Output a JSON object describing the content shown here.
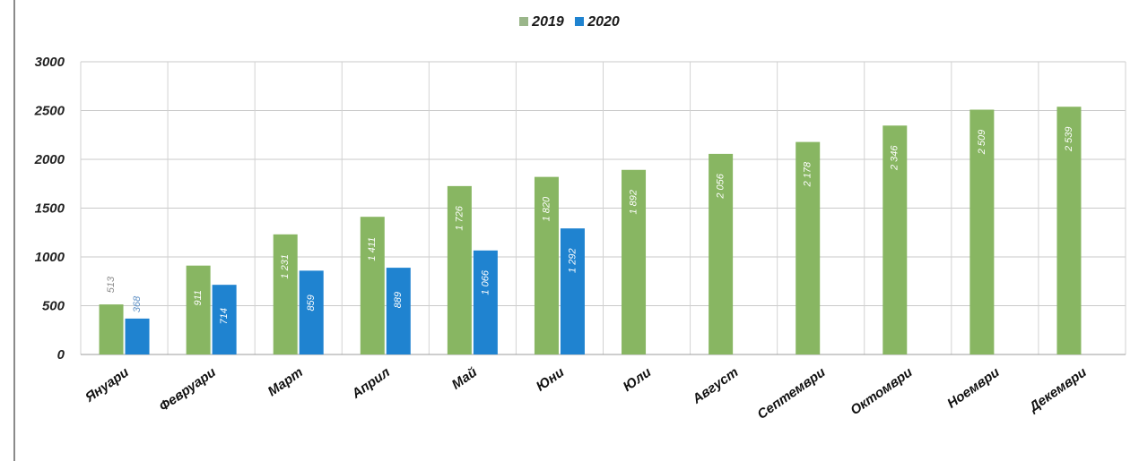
{
  "chart_data": {
    "type": "bar",
    "categories": [
      "Януари",
      "Февруари",
      "Март",
      "Април",
      "Май",
      "Юни",
      "Юли",
      "Август",
      "Септември",
      "Октомври",
      "Ноември",
      "Декември"
    ],
    "series": [
      {
        "name": "2019",
        "color": "#88b662",
        "values": [
          513,
          911,
          1231,
          1411,
          1726,
          1820,
          1892,
          2056,
          2178,
          2346,
          2509,
          2539
        ],
        "labels": [
          "513",
          "911",
          "1 231",
          "1 411",
          "1 726",
          "1 820",
          "1 892",
          "2 056",
          "2 178",
          "2 346",
          "2 509",
          "2 539"
        ]
      },
      {
        "name": "2020",
        "color": "#1f83d0",
        "values": [
          368,
          714,
          859,
          889,
          1066,
          1292,
          null,
          null,
          null,
          null,
          null,
          null
        ],
        "labels": [
          "368",
          "714",
          "859",
          "889",
          "1 066",
          "1 292",
          "",
          "",
          "",
          "",
          "",
          ""
        ]
      }
    ],
    "yticks": [
      "3000",
      "2500",
      "2000",
      "1500",
      "1000",
      "500",
      "0"
    ],
    "ylim": [
      0,
      3000
    ],
    "grid": true,
    "legend_position": "top-center"
  }
}
